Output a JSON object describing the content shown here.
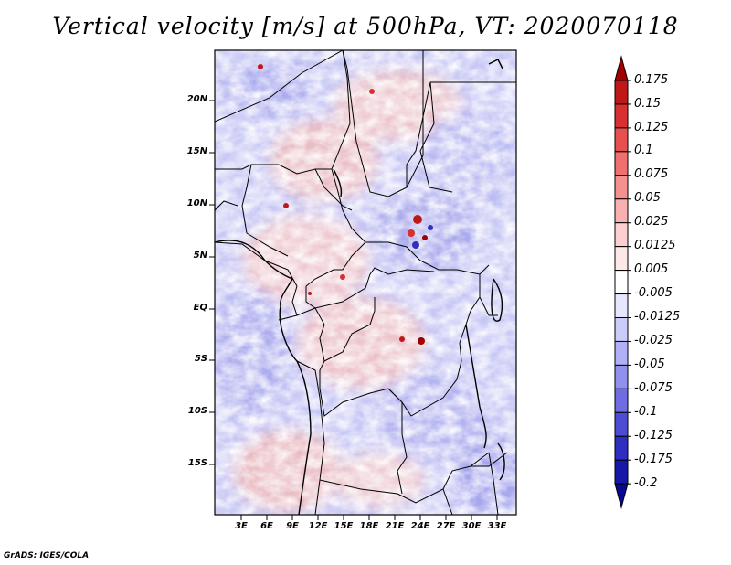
{
  "title": "Vertical velocity [m/s] at 500hPa, VT: 2020070118",
  "credit": "GrADS: IGES/COLA",
  "lat_labels": [
    "20N",
    "15N",
    "10N",
    "5N",
    "EQ",
    "5S",
    "10S",
    "15S"
  ],
  "lon_labels": [
    "3E",
    "6E",
    "9E",
    "12E",
    "15E",
    "18E",
    "21E",
    "24E",
    "27E",
    "30E",
    "33E"
  ],
  "colorbar": {
    "labels": [
      "0.175",
      "0.15",
      "0.125",
      "0.1",
      "0.075",
      "0.05",
      "0.025",
      "0.0125",
      "0.005",
      "-0.005",
      "-0.0125",
      "-0.025",
      "-0.05",
      "-0.075",
      "-0.1",
      "-0.125",
      "-0.175",
      "-0.2"
    ],
    "colors": [
      "#a00000",
      "#c01818",
      "#d83030",
      "#e85050",
      "#f07070",
      "#f49090",
      "#f8b0b0",
      "#fcd0d0",
      "#fde8e8",
      "#ffffff",
      "#e6e6fd",
      "#ccccfb",
      "#b0b0f6",
      "#9090ee",
      "#6e6ee2",
      "#4c4cd4",
      "#2e2ec0",
      "#1818a8",
      "#080890"
    ]
  }
}
